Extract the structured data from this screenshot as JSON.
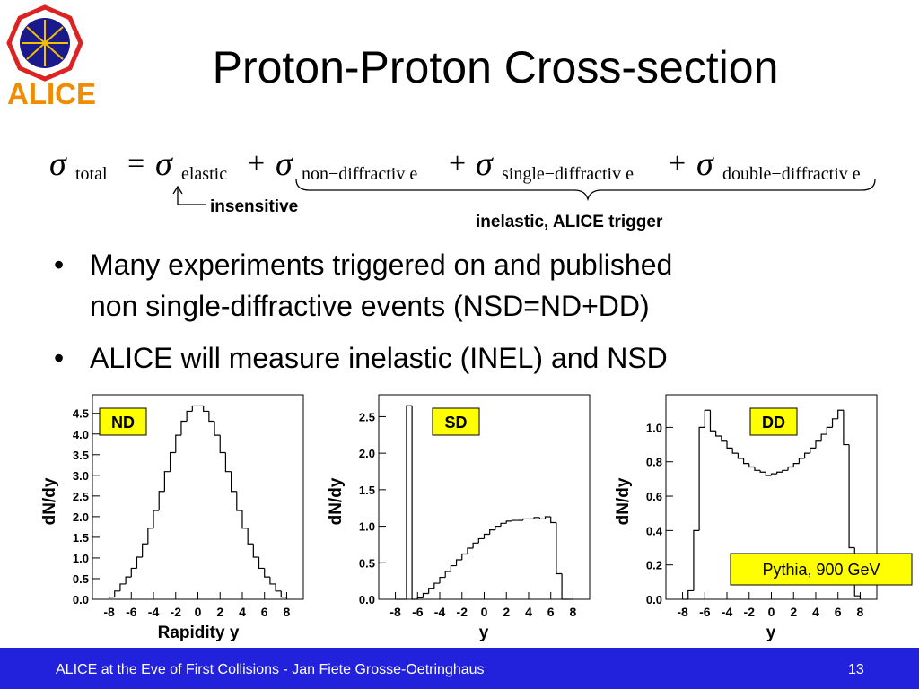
{
  "logo": {
    "text": "ALICE"
  },
  "header": {
    "title": "Proton-Proton Cross-section"
  },
  "formula": {
    "terms": [
      {
        "symbol": "σ",
        "subscript": "total"
      },
      {
        "symbol": "σ",
        "subscript": "elastic"
      },
      {
        "symbol": "σ",
        "subscript": "non−diffractiv e"
      },
      {
        "symbol": "σ",
        "subscript": "single−diffractiv e"
      },
      {
        "symbol": "σ",
        "subscript": "double−diffractiv e"
      }
    ],
    "operators": [
      "=",
      "+",
      "+",
      "+"
    ],
    "annotations": [
      "insensitive",
      "inelastic, ALICE trigger"
    ]
  },
  "bullets": [
    [
      "Many experiments triggered on and published",
      "non single-diffractive events (NSD=ND+DD)"
    ],
    [
      "ALICE will measure inelastic (INEL) and NSD"
    ]
  ],
  "chart_data": [
    {
      "type": "histogram",
      "title": "ND",
      "xlabel": "Rapidity y",
      "ylabel": "dN/dy",
      "color": "#000000",
      "bins": [
        -8,
        -7.5,
        -7,
        -6.5,
        -6,
        -5.5,
        -5,
        -4.5,
        -4,
        -3.5,
        -3,
        -2.5,
        -2,
        -1.5,
        -1,
        -0.5,
        0,
        0.5,
        1,
        1.5,
        2,
        2.5,
        3,
        3.5,
        4,
        4.5,
        5,
        5.5,
        6,
        6.5,
        7,
        7.5,
        8
      ],
      "values": [
        0.05,
        0.2,
        0.37,
        0.54,
        0.75,
        1.02,
        1.34,
        1.72,
        2.15,
        2.61,
        3.09,
        3.55,
        3.97,
        4.31,
        4.55,
        4.68,
        4.68,
        4.55,
        4.31,
        3.97,
        3.55,
        3.09,
        2.61,
        2.15,
        1.72,
        1.34,
        1.02,
        0.75,
        0.54,
        0.37,
        0.2,
        0.05
      ],
      "xlim": [
        -9.5,
        9.5
      ],
      "ylim": [
        0,
        4.95
      ],
      "xticks": [
        -8,
        -6,
        -4,
        -2,
        0,
        2,
        4,
        6,
        8
      ],
      "yticks": [
        {
          "value": 0,
          "label": "0.0"
        },
        0.5,
        {
          "value": 1,
          "label": "1.0"
        },
        1.5,
        {
          "value": 2,
          "label": "2.0"
        },
        2.5,
        {
          "value": 3,
          "label": "3.0"
        },
        3.5,
        {
          "value": 4,
          "label": "4.0"
        },
        4.5
      ]
    },
    {
      "type": "histogram",
      "title": "SD",
      "xlabel": "y",
      "ylabel": "dN/dy",
      "color": "#000000",
      "bins": [
        -8,
        -7.5,
        -7,
        -6.5,
        -6,
        -5.5,
        -5,
        -4.5,
        -4,
        -3.5,
        -3,
        -2.5,
        -2,
        -1.5,
        -1,
        -0.5,
        0,
        0.5,
        1,
        1.5,
        2,
        2.5,
        3,
        3.5,
        4,
        4.5,
        5,
        5.5,
        6,
        6.5,
        7,
        7.5,
        8
      ],
      "values": [
        0,
        0,
        2.65,
        0,
        0.02,
        0.08,
        0.15,
        0.22,
        0.3,
        0.38,
        0.46,
        0.54,
        0.62,
        0.7,
        0.77,
        0.83,
        0.89,
        0.95,
        1.0,
        1.04,
        1.07,
        1.08,
        1.08,
        1.1,
        1.1,
        1.12,
        1.1,
        1.13,
        1.05,
        0.35,
        0,
        0
      ],
      "xlim": [
        -9.5,
        9.5
      ],
      "ylim": [
        0,
        2.8
      ],
      "xticks": [
        -8,
        -6,
        -4,
        -2,
        0,
        2,
        4,
        6,
        8
      ],
      "yticks": [
        {
          "value": 0,
          "label": "0.0"
        },
        0.5,
        {
          "value": 1,
          "label": "1.0"
        },
        1.5,
        {
          "value": 2,
          "label": "2.0"
        },
        2.5
      ]
    },
    {
      "type": "histogram",
      "title": "DD",
      "xlabel": "y",
      "ylabel": "dN/dy",
      "color": "#000000",
      "annotation": "Pythia, 900 GeV",
      "bins": [
        -8,
        -7.5,
        -7,
        -6.5,
        -6,
        -5.5,
        -5,
        -4.5,
        -4,
        -3.5,
        -3,
        -2.5,
        -2,
        -1.5,
        -1,
        -0.5,
        0,
        0.5,
        1,
        1.5,
        2,
        2.5,
        3,
        3.5,
        4,
        4.5,
        5,
        5.5,
        6,
        6.5,
        7,
        7.5,
        8
      ],
      "values": [
        0,
        0.05,
        0.4,
        1.0,
        1.1,
        0.98,
        0.95,
        0.92,
        0.88,
        0.85,
        0.82,
        0.79,
        0.77,
        0.75,
        0.74,
        0.72,
        0.73,
        0.74,
        0.75,
        0.77,
        0.79,
        0.82,
        0.85,
        0.88,
        0.92,
        0.96,
        1.0,
        1.05,
        1.1,
        0.9,
        0.3,
        0.02
      ],
      "xlim": [
        -9.5,
        9.5
      ],
      "ylim": [
        0,
        1.19
      ],
      "xticks": [
        -8,
        -6,
        -4,
        -2,
        0,
        2,
        4,
        6,
        8
      ],
      "yticks": [
        {
          "value": 0,
          "label": "0.0"
        },
        0.2,
        0.4,
        0.6,
        0.8,
        {
          "value": 1,
          "label": "1.0"
        }
      ]
    }
  ],
  "footer": {
    "text": "ALICE at the Eve of First Collisions  - Jan Fiete Grosse-Oetringhaus",
    "page": "13"
  }
}
